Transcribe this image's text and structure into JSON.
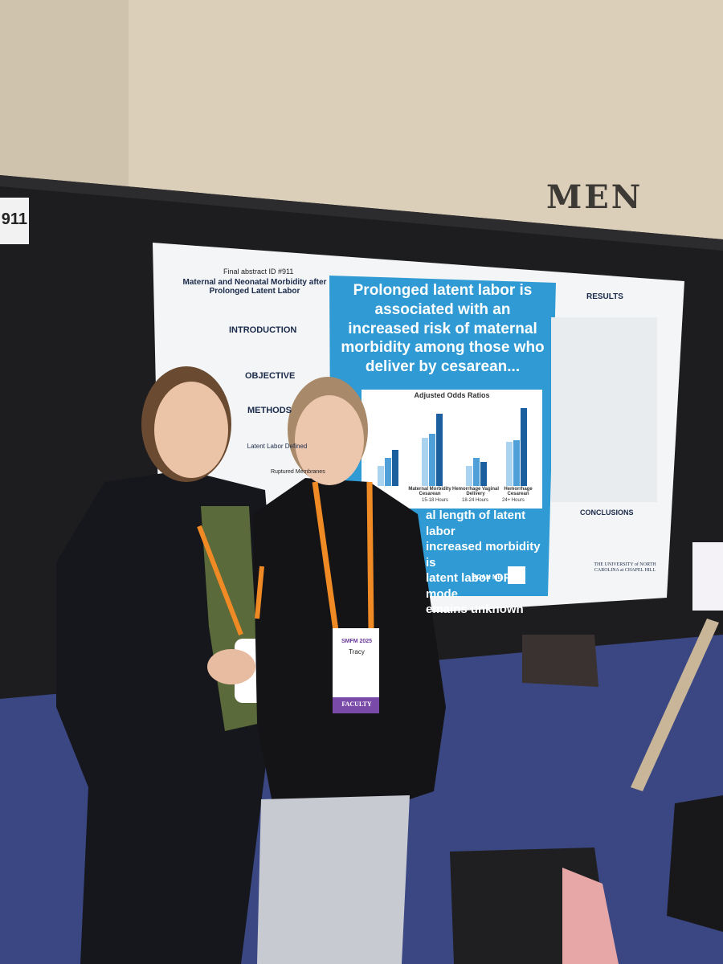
{
  "wall_sign": "MEN",
  "booth_number": "911",
  "poster": {
    "abstract_id": "Final abstract ID #911",
    "title": "Maternal and Neonatal Morbidity after Prolonged Latent Labor",
    "sections": [
      "INTRODUCTION",
      "OBJECTIVE",
      "METHODS"
    ],
    "latent_labor_defined": "Latent Labor Defined",
    "ruptured_membranes": "Ruptured Membranes",
    "headline": "Prolonged latent labor is associated with an increased risk of maternal morbidity among those who deliver by cesarean...",
    "lower_lines": [
      "al length of latent labor",
      "increased morbidity is",
      "latent labor OR mode",
      "emains unknown"
    ],
    "chart_title": "Adjusted Odds Ratios",
    "chart_categories": [
      "Maternal Morbidity Cesarean",
      "Hemorrhage Vaginal Delivery",
      "Hemorrhage Cesarean"
    ],
    "chart_legend": [
      "15-18 Hours",
      "18-24 Hours",
      "24+ Hours"
    ],
    "results_heading": "RESULTS",
    "conclusions_heading": "CONCLUSIONS",
    "scan": "SCAN ME",
    "university": "THE UNIVERSITY of NORTH CAROLINA at CHAPEL HILL"
  },
  "badge": {
    "event": "SMFM 2025",
    "name": "Tracy",
    "role": "FACULTY"
  }
}
